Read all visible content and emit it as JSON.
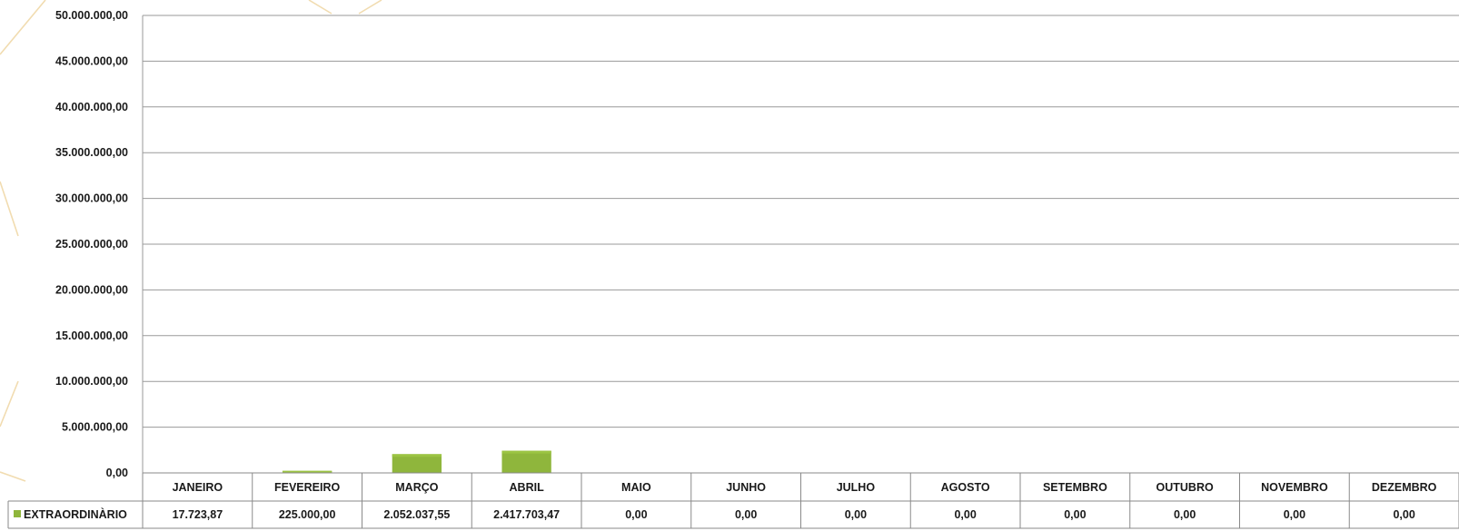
{
  "colors": {
    "bar": "#8fb63c",
    "bar_top": "#9cc443",
    "grid": "#9a9a9a",
    "table_border": "#8a8a8a",
    "deco": "#f1dcb0"
  },
  "chart_data": {
    "type": "bar",
    "categories": [
      "JANEIRO",
      "FEVEREIRO",
      "MARÇO",
      "ABRIL",
      "MAIO",
      "JUNHO",
      "JULHO",
      "AGOSTO",
      "SETEMBRO",
      "OUTUBRO",
      "NOVEMBRO",
      "DEZEMBRO"
    ],
    "series": [
      {
        "name": "EXTRAORDINÀRIO",
        "values": [
          17723.87,
          225000.0,
          2052037.55,
          2417703.47,
          0,
          0,
          0,
          0,
          0,
          0,
          0,
          0
        ],
        "labels": [
          "17.723,87",
          "225.000,00",
          "2.052.037,55",
          "2.417.703,47",
          "0,00",
          "0,00",
          "0,00",
          "0,00",
          "0,00",
          "0,00",
          "0,00",
          "0,00"
        ]
      }
    ],
    "yticks": [
      "0,00",
      "5.000.000,00",
      "10.000.000,00",
      "15.000.000,00",
      "20.000.000,00",
      "25.000.000,00",
      "30.000.000,00",
      "35.000.000,00",
      "40.000.000,00",
      "45.000.000,00",
      "50.000.000,00"
    ],
    "ylim": [
      0,
      50000000
    ],
    "grid": true,
    "legend": "data-table"
  }
}
